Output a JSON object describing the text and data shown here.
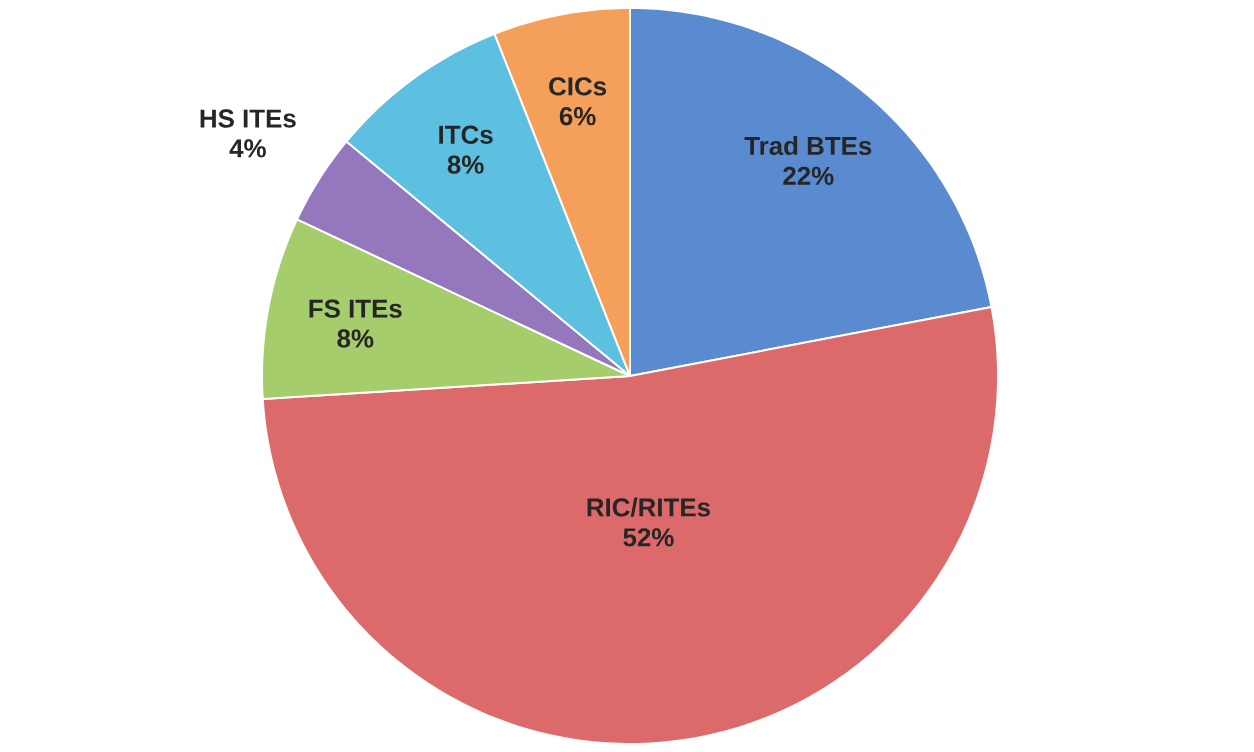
{
  "chart_data": {
    "type": "pie",
    "categories": [
      "Trad BTEs",
      "RIC/RITEs",
      "FS ITEs",
      "HS ITEs",
      "ITCs",
      "CICs"
    ],
    "values": [
      22,
      52,
      8,
      4,
      8,
      6
    ],
    "value_labels": [
      "22%",
      "52%",
      "8%",
      "4%",
      "8%",
      "6%"
    ],
    "colors": [
      "#5a8ad0",
      "#dd6a6a",
      "#a5cd6b",
      "#9477bd",
      "#5ec0e0",
      "#f5a05a"
    ]
  }
}
